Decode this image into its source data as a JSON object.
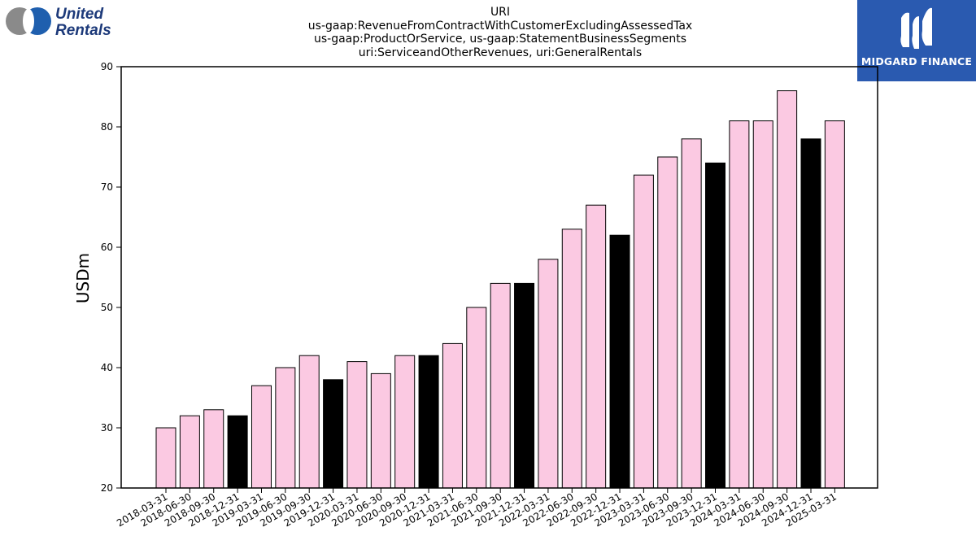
{
  "logos": {
    "left": {
      "line1": "United",
      "line2": "Rentals"
    },
    "right": {
      "name": "MIDGARD FINANCE"
    }
  },
  "colors": {
    "bar_pink": "#fbc9e2",
    "bar_black": "#000000",
    "midgard_blue": "#2a5ab0",
    "united_blue": "#1f5fae",
    "united_gray": "#8a8a8a"
  },
  "chart_data": {
    "type": "bar",
    "title_lines": [
      "URI",
      "us-gaap:RevenueFromContractWithCustomerExcludingAssessedTax",
      "us-gaap:ProductOrService, us-gaap:StatementBusinessSegments",
      "uri:ServiceandOtherRevenues, uri:GeneralRentals"
    ],
    "xlabel": "",
    "ylabel": "USDm",
    "ylim": [
      20,
      90
    ],
    "yticks": [
      20,
      30,
      40,
      50,
      60,
      70,
      80,
      90
    ],
    "grid": false,
    "categories": [
      "2018-03-31",
      "2018-06-30",
      "2018-09-30",
      "2018-12-31",
      "2019-03-31",
      "2019-06-30",
      "2019-09-30",
      "2019-12-31",
      "2020-03-31",
      "2020-06-30",
      "2020-09-30",
      "2020-12-31",
      "2021-03-31",
      "2021-06-30",
      "2021-09-30",
      "2021-12-31",
      "2022-03-31",
      "2022-06-30",
      "2022-09-30",
      "2022-12-31",
      "2023-03-31",
      "2023-06-30",
      "2023-09-30",
      "2023-12-31",
      "2024-03-31",
      "2024-06-30",
      "2024-09-30",
      "2024-12-31",
      "2025-03-31"
    ],
    "values": [
      30,
      32,
      33,
      32,
      37,
      40,
      42,
      38,
      41,
      39,
      42,
      42,
      44,
      50,
      54,
      54,
      58,
      63,
      67,
      62,
      72,
      75,
      78,
      74,
      81,
      81,
      86,
      78,
      81
    ],
    "year_end_highlight": [
      false,
      false,
      false,
      true,
      false,
      false,
      false,
      true,
      false,
      false,
      false,
      true,
      false,
      false,
      false,
      true,
      false,
      false,
      false,
      true,
      false,
      false,
      false,
      true,
      false,
      false,
      false,
      true,
      false
    ]
  }
}
